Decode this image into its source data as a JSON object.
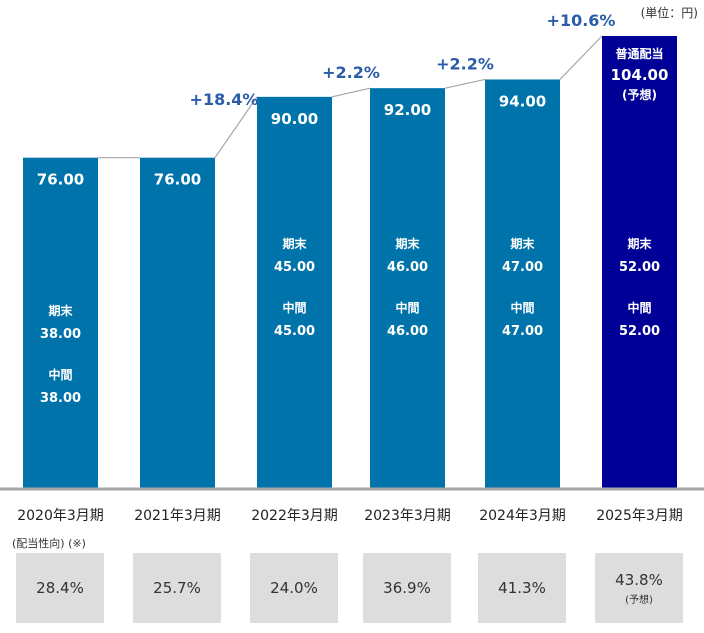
{
  "chart_data": {
    "type": "bar",
    "title": "",
    "unit_label": "(単位：円)",
    "xlabel": "",
    "ylabel": "",
    "ylim": [
      0,
      110
    ],
    "grid": false,
    "categories": [
      "2020年3月期",
      "2021年3月期",
      "2022年3月期",
      "2023年3月期",
      "2024年3月期",
      "2025年3月期"
    ],
    "values": [
      76.0,
      76.0,
      90.0,
      92.0,
      94.0,
      104.0
    ],
    "value_labels": [
      "76.00",
      "76.00",
      "90.00",
      "92.00",
      "94.00",
      "104.00"
    ],
    "colors": [
      "#0074aa",
      "#0074aa",
      "#0074aa",
      "#0074aa",
      "#0074aa",
      "#000096"
    ],
    "forecast_header": "普通配当",
    "forecast_note": "(予想)",
    "breakdown": [
      {
        "year_end_label": "期末",
        "year_end": "38.00",
        "interim_label": "中間",
        "interim": "38.00"
      },
      null,
      {
        "year_end_label": "期末",
        "year_end": "45.00",
        "interim_label": "中間",
        "interim": "45.00"
      },
      {
        "year_end_label": "期末",
        "year_end": "46.00",
        "interim_label": "中間",
        "interim": "46.00"
      },
      {
        "year_end_label": "期末",
        "year_end": "47.00",
        "interim_label": "中間",
        "interim": "47.00"
      },
      {
        "year_end_label": "期末",
        "year_end": "52.00",
        "interim_label": "中間",
        "interim": "52.00"
      }
    ],
    "growth_labels": [
      null,
      null,
      "+18.4%",
      "+2.2%",
      "+2.2%",
      "+10.6%"
    ]
  },
  "payout_ratio": {
    "title": "(配当性向) (※)",
    "values": [
      "28.4%",
      "25.7%",
      "24.0%",
      "36.9%",
      "41.3%",
      "43.8%"
    ],
    "notes": [
      "",
      "",
      "",
      "",
      "",
      "(予想)"
    ]
  }
}
